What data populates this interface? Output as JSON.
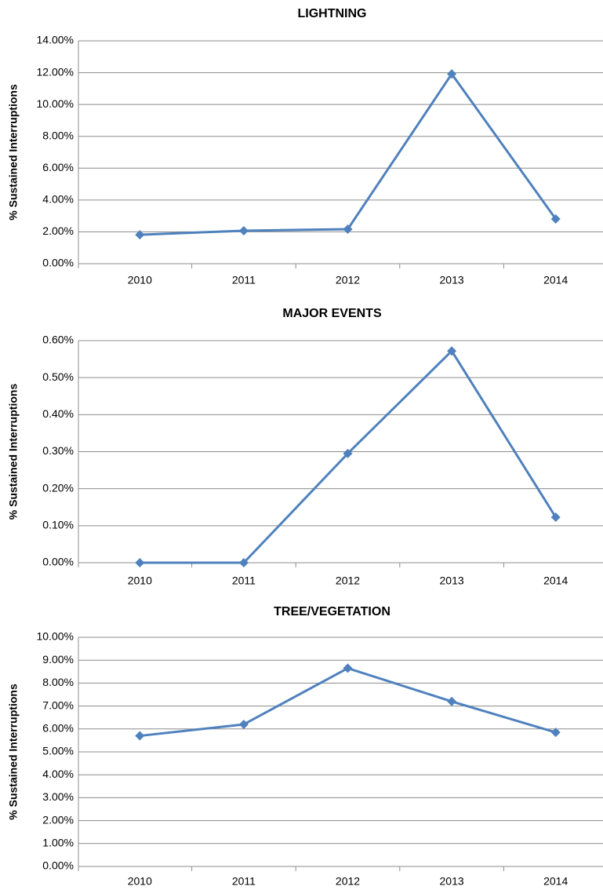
{
  "chart_data": [
    {
      "type": "line",
      "title": "LIGHTNING",
      "y_label": "% Sustained Interruptions",
      "categories": [
        "2010",
        "2011",
        "2012",
        "2013",
        "2014"
      ],
      "values": [
        1.82,
        2.07,
        2.17,
        11.92,
        2.81
      ],
      "color": "#4f81bd",
      "ylim": [
        0,
        14
      ],
      "yticks": [
        {
          "value": 0,
          "label": "0.00%"
        },
        {
          "value": 2,
          "label": "2.00%"
        },
        {
          "value": 4,
          "label": "4.00%"
        },
        {
          "value": 6,
          "label": "6.00%"
        },
        {
          "value": 8,
          "label": "8.00%"
        },
        {
          "value": 10,
          "label": "10.00%"
        },
        {
          "value": 12,
          "label": "12.00%"
        },
        {
          "value": 14,
          "label": "14.00%"
        }
      ],
      "grid": true
    },
    {
      "type": "line",
      "title": "MAJOR EVENTS",
      "y_label": "% Sustained Interruptions",
      "categories": [
        "2010",
        "2011",
        "2012",
        "2013",
        "2014"
      ],
      "values": [
        0,
        0,
        0.295,
        0.572,
        0.123
      ],
      "color": "#4f81bd",
      "ylim": [
        0,
        0.6
      ],
      "yticks": [
        {
          "value": 0,
          "label": "0.00%"
        },
        {
          "value": 0.1,
          "label": "0.10%"
        },
        {
          "value": 0.2,
          "label": "0.20%"
        },
        {
          "value": 0.3,
          "label": "0.30%"
        },
        {
          "value": 0.4,
          "label": "0.40%"
        },
        {
          "value": 0.5,
          "label": "0.50%"
        },
        {
          "value": 0.6,
          "label": "0.60%"
        }
      ],
      "grid": true
    },
    {
      "type": "line",
      "title": "TREE/VEGETATION",
      "y_label": "% Sustained Interruptions",
      "categories": [
        "2010",
        "2011",
        "2012",
        "2013",
        "2014"
      ],
      "values": [
        5.7,
        6.2,
        8.65,
        7.2,
        5.85
      ],
      "color": "#4f81bd",
      "ylim": [
        0,
        10
      ],
      "yticks": [
        {
          "value": 0,
          "label": "0.00%"
        },
        {
          "value": 1,
          "label": "1.00%"
        },
        {
          "value": 2,
          "label": "2.00%"
        },
        {
          "value": 3,
          "label": "3.00%"
        },
        {
          "value": 4,
          "label": "4.00%"
        },
        {
          "value": 5,
          "label": "5.00%"
        },
        {
          "value": 6,
          "label": "6.00%"
        },
        {
          "value": 7,
          "label": "7.00%"
        },
        {
          "value": 8,
          "label": "8.00%"
        },
        {
          "value": 9,
          "label": "9.00%"
        },
        {
          "value": 10,
          "label": "10.00%"
        }
      ],
      "grid": true
    }
  ]
}
